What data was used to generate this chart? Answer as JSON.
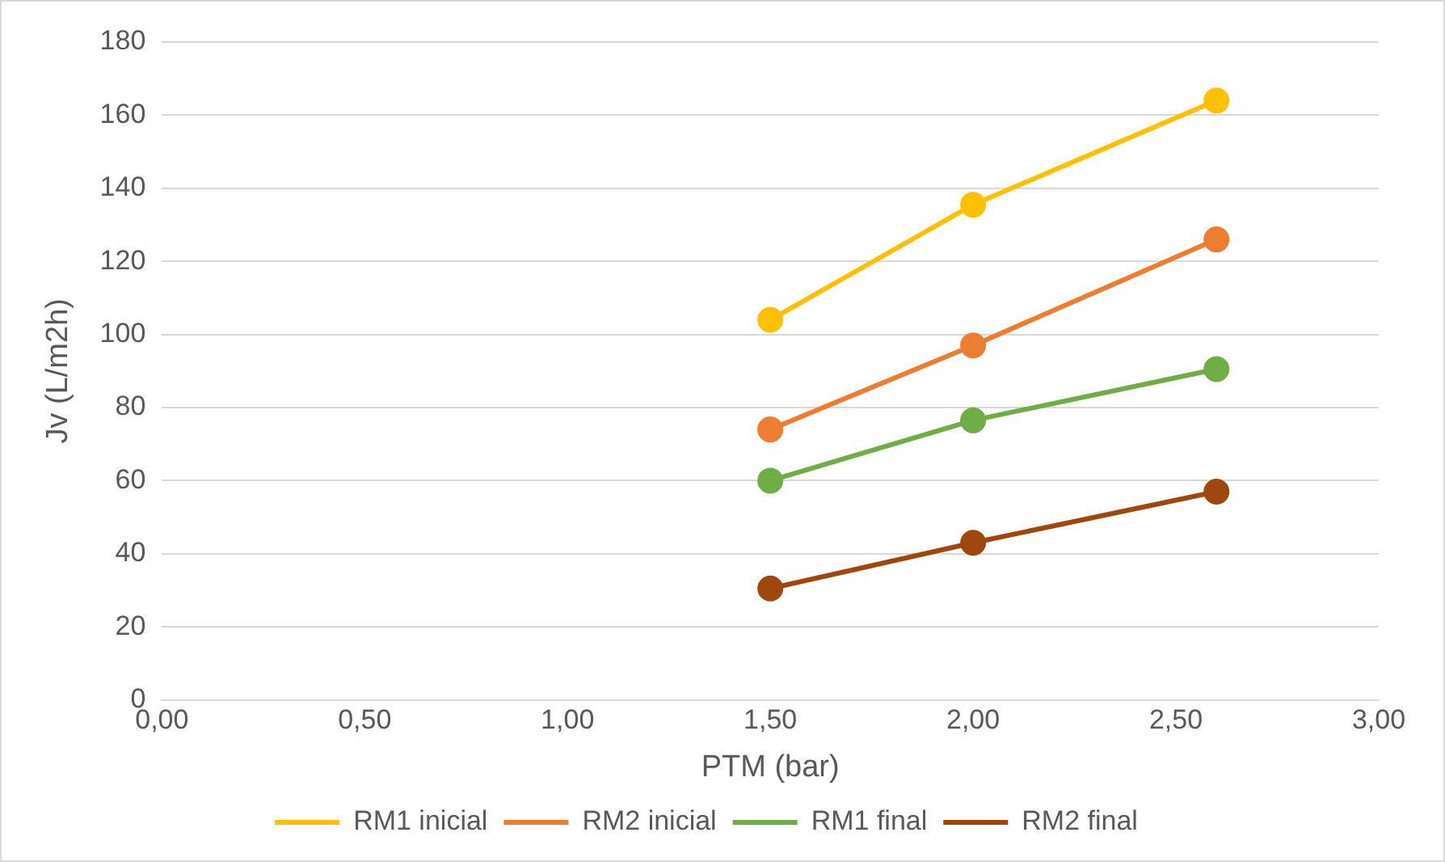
{
  "chart_data": {
    "type": "line",
    "xlabel": "PTM (bar)",
    "ylabel": "Jv (L/m2h)",
    "x": [
      1.5,
      2.0,
      2.6
    ],
    "series": [
      {
        "name": "RM1 inicial",
        "color": "#ffc000",
        "values": [
          104,
          135.5,
          164
        ]
      },
      {
        "name": "RM2 inicial",
        "color": "#ed7d31",
        "values": [
          74,
          97,
          126
        ]
      },
      {
        "name": "RM1 final",
        "color": "#70ad47",
        "values": [
          60,
          76.5,
          90.5
        ]
      },
      {
        "name": "RM2 final",
        "color": "#9e480e",
        "values": [
          30.5,
          43,
          57
        ]
      }
    ],
    "xlim": [
      0,
      3
    ],
    "xticks": [
      {
        "value": 0,
        "label": "0,00"
      },
      {
        "value": 0.5,
        "label": "0,50"
      },
      {
        "value": 1,
        "label": "1,00"
      },
      {
        "value": 1.5,
        "label": "1,50"
      },
      {
        "value": 2,
        "label": "2,00"
      },
      {
        "value": 2.5,
        "label": "2,50"
      },
      {
        "value": 3,
        "label": "3,00"
      }
    ],
    "ylim": [
      0,
      180
    ],
    "yticks": [
      0,
      20,
      40,
      60,
      80,
      100,
      120,
      140,
      160,
      180
    ],
    "grid": "y",
    "legend": "bottom",
    "marker": "circle",
    "line_style": "solid"
  }
}
